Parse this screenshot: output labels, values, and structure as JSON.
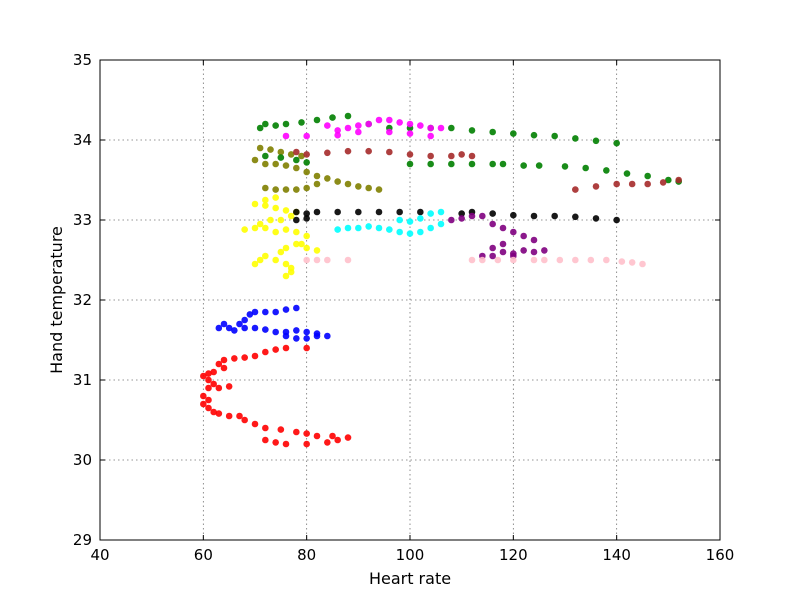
{
  "chart_data": {
    "type": "scatter",
    "title": "",
    "xlabel": "Heart rate",
    "ylabel": "Hand temperature",
    "xlim": [
      40,
      160
    ],
    "ylim": [
      29,
      35
    ],
    "xticks": [
      "40",
      "60",
      "80",
      "100",
      "120",
      "140",
      "160"
    ],
    "yticks": [
      "29",
      "30",
      "31",
      "32",
      "33",
      "34",
      "35"
    ],
    "grid": true,
    "legend": "none",
    "series": [
      {
        "color": "#ff0000",
        "points": [
          [
            60,
            31.05
          ],
          [
            61,
            31.0
          ],
          [
            62,
            30.95
          ],
          [
            61,
            30.9
          ],
          [
            63,
            30.9
          ],
          [
            65,
            30.92
          ],
          [
            60,
            30.8
          ],
          [
            61,
            30.75
          ],
          [
            60,
            30.7
          ],
          [
            61,
            30.65
          ],
          [
            62,
            30.6
          ],
          [
            63,
            30.58
          ],
          [
            65,
            30.55
          ],
          [
            67,
            30.55
          ],
          [
            68,
            30.5
          ],
          [
            70,
            30.45
          ],
          [
            72,
            30.4
          ],
          [
            75,
            30.38
          ],
          [
            78,
            30.35
          ],
          [
            80,
            30.33
          ],
          [
            82,
            30.3
          ],
          [
            85,
            30.3
          ],
          [
            88,
            30.28
          ],
          [
            86,
            30.25
          ],
          [
            84,
            30.22
          ],
          [
            80,
            30.2
          ],
          [
            76,
            30.2
          ],
          [
            74,
            30.22
          ],
          [
            72,
            30.25
          ],
          [
            62,
            31.1
          ],
          [
            63,
            31.2
          ],
          [
            64,
            31.25
          ],
          [
            66,
            31.27
          ],
          [
            68,
            31.28
          ],
          [
            70,
            31.3
          ],
          [
            72,
            31.35
          ],
          [
            74,
            31.38
          ],
          [
            76,
            31.4
          ],
          [
            80,
            31.4
          ],
          [
            64,
            31.15
          ],
          [
            61,
            31.08
          ]
        ]
      },
      {
        "color": "#0000ff",
        "points": [
          [
            63,
            31.65
          ],
          [
            64,
            31.7
          ],
          [
            65,
            31.65
          ],
          [
            67,
            31.7
          ],
          [
            68,
            31.75
          ],
          [
            69,
            31.82
          ],
          [
            70,
            31.85
          ],
          [
            72,
            31.85
          ],
          [
            74,
            31.85
          ],
          [
            76,
            31.88
          ],
          [
            78,
            31.9
          ],
          [
            66,
            31.62
          ],
          [
            68,
            31.65
          ],
          [
            70,
            31.65
          ],
          [
            72,
            31.63
          ],
          [
            74,
            31.6
          ],
          [
            76,
            31.6
          ],
          [
            78,
            31.62
          ],
          [
            80,
            31.6
          ],
          [
            82,
            31.58
          ],
          [
            84,
            31.55
          ],
          [
            76,
            31.55
          ],
          [
            78,
            31.52
          ],
          [
            80,
            31.52
          ],
          [
            82,
            31.55
          ]
        ]
      },
      {
        "color": "#ffff00",
        "points": [
          [
            70,
            32.45
          ],
          [
            71,
            32.5
          ],
          [
            72,
            32.55
          ],
          [
            74,
            32.5
          ],
          [
            76,
            32.45
          ],
          [
            77,
            32.4
          ],
          [
            76,
            32.3
          ],
          [
            77,
            32.35
          ],
          [
            75,
            32.6
          ],
          [
            76,
            32.65
          ],
          [
            78,
            32.7
          ],
          [
            80,
            32.65
          ],
          [
            82,
            32.62
          ],
          [
            79,
            32.7
          ],
          [
            80,
            32.8
          ],
          [
            78,
            32.85
          ],
          [
            76,
            32.88
          ],
          [
            74,
            32.85
          ],
          [
            72,
            32.9
          ],
          [
            70,
            32.9
          ],
          [
            68,
            32.88
          ],
          [
            71,
            32.95
          ],
          [
            73,
            33.0
          ],
          [
            75,
            33.0
          ],
          [
            77,
            33.05
          ],
          [
            78,
            33.1
          ],
          [
            76,
            33.12
          ],
          [
            74,
            33.15
          ],
          [
            72,
            33.18
          ],
          [
            70,
            33.2
          ],
          [
            72,
            33.25
          ],
          [
            74,
            33.28
          ]
        ]
      },
      {
        "color": "#808000",
        "points": [
          [
            70,
            33.75
          ],
          [
            72,
            33.7
          ],
          [
            74,
            33.7
          ],
          [
            76,
            33.68
          ],
          [
            78,
            33.65
          ],
          [
            80,
            33.6
          ],
          [
            82,
            33.55
          ],
          [
            84,
            33.52
          ],
          [
            86,
            33.48
          ],
          [
            88,
            33.45
          ],
          [
            90,
            33.42
          ],
          [
            92,
            33.4
          ],
          [
            94,
            33.38
          ],
          [
            71,
            33.9
          ],
          [
            73,
            33.88
          ],
          [
            75,
            33.85
          ],
          [
            77,
            33.82
          ],
          [
            79,
            33.8
          ],
          [
            72,
            33.4
          ],
          [
            74,
            33.38
          ],
          [
            76,
            33.38
          ],
          [
            78,
            33.38
          ],
          [
            80,
            33.4
          ],
          [
            82,
            33.45
          ]
        ]
      },
      {
        "color": "#008000",
        "points": [
          [
            71,
            34.15
          ],
          [
            72,
            34.2
          ],
          [
            74,
            34.18
          ],
          [
            76,
            34.2
          ],
          [
            79,
            34.22
          ],
          [
            82,
            34.25
          ],
          [
            85,
            34.28
          ],
          [
            88,
            34.3
          ],
          [
            92,
            34.2
          ],
          [
            96,
            34.15
          ],
          [
            100,
            34.15
          ],
          [
            104,
            34.15
          ],
          [
            108,
            34.15
          ],
          [
            112,
            34.12
          ],
          [
            116,
            34.1
          ],
          [
            120,
            34.08
          ],
          [
            124,
            34.06
          ],
          [
            128,
            34.05
          ],
          [
            132,
            34.02
          ],
          [
            136,
            33.99
          ],
          [
            140,
            33.96
          ],
          [
            72,
            33.8
          ],
          [
            75,
            33.78
          ],
          [
            78,
            33.75
          ],
          [
            80,
            33.72
          ],
          [
            100,
            33.7
          ],
          [
            104,
            33.7
          ],
          [
            108,
            33.7
          ],
          [
            112,
            33.7
          ],
          [
            116,
            33.7
          ],
          [
            118,
            33.7
          ],
          [
            122,
            33.68
          ],
          [
            125,
            33.68
          ],
          [
            130,
            33.67
          ],
          [
            134,
            33.65
          ],
          [
            138,
            33.62
          ],
          [
            142,
            33.58
          ],
          [
            146,
            33.55
          ],
          [
            150,
            33.5
          ],
          [
            152,
            33.48
          ]
        ]
      },
      {
        "color": "#a52a2a",
        "points": [
          [
            78,
            33.85
          ],
          [
            80,
            33.82
          ],
          [
            84,
            33.84
          ],
          [
            88,
            33.86
          ],
          [
            92,
            33.86
          ],
          [
            96,
            33.85
          ],
          [
            100,
            33.82
          ],
          [
            104,
            33.8
          ],
          [
            108,
            33.8
          ],
          [
            112,
            33.8
          ],
          [
            110,
            33.82
          ],
          [
            140,
            33.45
          ],
          [
            143,
            33.45
          ],
          [
            146,
            33.45
          ],
          [
            149,
            33.47
          ],
          [
            152,
            33.5
          ],
          [
            136,
            33.42
          ],
          [
            132,
            33.38
          ]
        ]
      },
      {
        "color": "#ff00ff",
        "points": [
          [
            84,
            34.18
          ],
          [
            86,
            34.12
          ],
          [
            88,
            34.15
          ],
          [
            90,
            34.18
          ],
          [
            92,
            34.2
          ],
          [
            94,
            34.25
          ],
          [
            96,
            34.25
          ],
          [
            98,
            34.22
          ],
          [
            100,
            34.2
          ],
          [
            102,
            34.18
          ],
          [
            104,
            34.15
          ],
          [
            106,
            34.15
          ],
          [
            90,
            34.1
          ],
          [
            86,
            34.06
          ],
          [
            80,
            34.05
          ],
          [
            76,
            34.05
          ],
          [
            96,
            34.1
          ],
          [
            100,
            34.08
          ],
          [
            104,
            34.05
          ]
        ]
      },
      {
        "color": "#000000",
        "points": [
          [
            78,
            33.1
          ],
          [
            80,
            33.08
          ],
          [
            82,
            33.1
          ],
          [
            86,
            33.1
          ],
          [
            90,
            33.1
          ],
          [
            94,
            33.1
          ],
          [
            98,
            33.1
          ],
          [
            102,
            33.1
          ],
          [
            110,
            33.08
          ],
          [
            112,
            33.1
          ],
          [
            116,
            33.08
          ],
          [
            120,
            33.06
          ],
          [
            124,
            33.05
          ],
          [
            128,
            33.05
          ],
          [
            132,
            33.04
          ],
          [
            136,
            33.02
          ],
          [
            140,
            33.0
          ],
          [
            78,
            33.0
          ],
          [
            80,
            33.02
          ]
        ]
      },
      {
        "color": "#00ffff",
        "points": [
          [
            86,
            32.88
          ],
          [
            88,
            32.9
          ],
          [
            90,
            32.9
          ],
          [
            92,
            32.92
          ],
          [
            94,
            32.9
          ],
          [
            96,
            32.88
          ],
          [
            98,
            32.85
          ],
          [
            100,
            32.83
          ],
          [
            102,
            32.85
          ],
          [
            104,
            32.9
          ],
          [
            106,
            32.95
          ],
          [
            100,
            32.98
          ],
          [
            98,
            33.0
          ],
          [
            102,
            33.02
          ],
          [
            104,
            33.08
          ],
          [
            106,
            33.1
          ]
        ]
      },
      {
        "color": "#800080",
        "points": [
          [
            108,
            33.0
          ],
          [
            110,
            33.02
          ],
          [
            112,
            33.05
          ],
          [
            114,
            33.05
          ],
          [
            116,
            32.95
          ],
          [
            118,
            32.9
          ],
          [
            120,
            32.85
          ],
          [
            122,
            32.8
          ],
          [
            124,
            32.75
          ],
          [
            118,
            32.7
          ],
          [
            116,
            32.65
          ],
          [
            118,
            32.6
          ],
          [
            120,
            32.58
          ],
          [
            122,
            32.62
          ],
          [
            124,
            32.6
          ],
          [
            126,
            32.62
          ],
          [
            116,
            32.55
          ],
          [
            114,
            32.55
          ],
          [
            120,
            32.55
          ]
        ]
      },
      {
        "color": "#ffc0cb",
        "points": [
          [
            80,
            32.5
          ],
          [
            82,
            32.5
          ],
          [
            84,
            32.5
          ],
          [
            88,
            32.5
          ],
          [
            112,
            32.5
          ],
          [
            114,
            32.5
          ],
          [
            117,
            32.5
          ],
          [
            120,
            32.5
          ],
          [
            124,
            32.5
          ],
          [
            126,
            32.5
          ],
          [
            129,
            32.5
          ],
          [
            132,
            32.5
          ],
          [
            135,
            32.5
          ],
          [
            138,
            32.5
          ],
          [
            141,
            32.48
          ],
          [
            143,
            32.47
          ],
          [
            145,
            32.45
          ]
        ]
      }
    ]
  }
}
